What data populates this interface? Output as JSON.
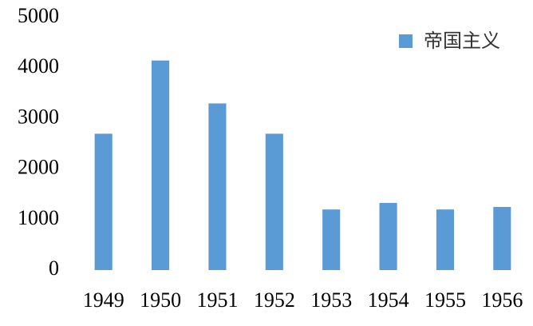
{
  "chart_data": {
    "type": "bar",
    "categories": [
      "1949",
      "1950",
      "1951",
      "1952",
      "1953",
      "1954",
      "1955",
      "1956"
    ],
    "series": [
      {
        "name": "帝国主义",
        "color": "#5b9bd5",
        "values": [
          2700,
          4150,
          3300,
          2700,
          1200,
          1330,
          1200,
          1250
        ]
      }
    ],
    "ylim": [
      0,
      5000
    ],
    "yticks": [
      0,
      1000,
      2000,
      3000,
      4000,
      5000
    ],
    "grid": false,
    "legend": "top-right"
  }
}
